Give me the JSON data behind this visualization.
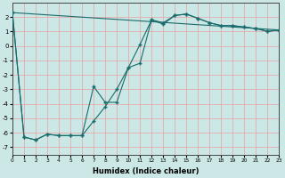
{
  "xlabel": "Humidex (Indice chaleur)",
  "bg_color": "#cce8e6",
  "grid_color": "#e8a0a0",
  "line_color": "#1a6b6b",
  "curve1_x": [
    0,
    1,
    2,
    3,
    4,
    5,
    6,
    7,
    8,
    9,
    10,
    11,
    12,
    13,
    14,
    15,
    16,
    17,
    18,
    19,
    20,
    21,
    22,
    23
  ],
  "curve1_y": [
    2.3,
    -6.3,
    -6.5,
    -6.1,
    -6.2,
    -6.2,
    -6.2,
    -5.2,
    -4.2,
    -3.0,
    -1.5,
    0.1,
    1.8,
    1.6,
    2.1,
    2.2,
    1.9,
    1.6,
    1.4,
    1.4,
    1.3,
    1.2,
    1.0,
    1.1
  ],
  "curve2_x": [
    0,
    1,
    2,
    3,
    4,
    5,
    6,
    7,
    8,
    9,
    10,
    11,
    12,
    13,
    14,
    15,
    16,
    17,
    18,
    19,
    20,
    21,
    22,
    23
  ],
  "curve2_y": [
    2.3,
    -6.3,
    -6.5,
    -6.1,
    -6.2,
    -6.2,
    -6.2,
    -2.8,
    -3.9,
    -3.9,
    -1.5,
    -1.2,
    1.8,
    1.5,
    2.1,
    2.2,
    1.9,
    1.6,
    1.4,
    1.4,
    1.3,
    1.2,
    1.0,
    1.1
  ],
  "curve3_x": [
    0,
    23
  ],
  "curve3_y": [
    2.3,
    1.1
  ],
  "xlim": [
    0,
    23
  ],
  "ylim": [
    -7.5,
    3.0
  ],
  "yticks": [
    2,
    1,
    0,
    -1,
    -2,
    -3,
    -4,
    -5,
    -6,
    -7
  ],
  "xticks": [
    0,
    1,
    2,
    3,
    4,
    5,
    6,
    7,
    8,
    9,
    10,
    11,
    12,
    13,
    14,
    15,
    16,
    17,
    18,
    19,
    20,
    21,
    22,
    23
  ]
}
